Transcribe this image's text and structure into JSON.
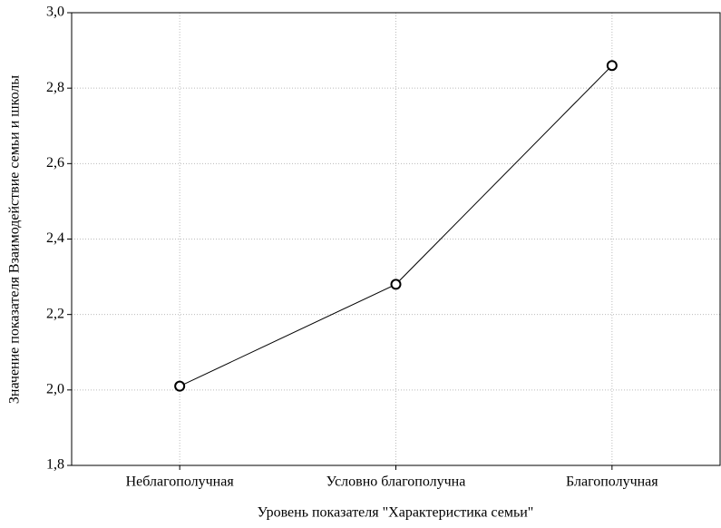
{
  "chart_data": {
    "type": "line",
    "xlabel": "Уровень показателя \"Характеристика семьи\"",
    "ylabel": "Значение показателя Взаимодействие семьи и школы",
    "categories": [
      "Неблагополучная",
      "Условно благополучна",
      "Благополучная"
    ],
    "series": [
      {
        "name": null,
        "color": "#000000",
        "values": [
          2.01,
          2.28,
          2.86
        ]
      }
    ],
    "ylim": [
      1.8,
      3.0
    ],
    "yticks": [
      {
        "value": 1.8,
        "label": "1,8"
      },
      {
        "value": 2.0,
        "label": "2,0"
      },
      {
        "value": 2.2,
        "label": "2,2"
      },
      {
        "value": 2.4,
        "label": "2,4"
      },
      {
        "value": 2.6,
        "label": "2,6"
      },
      {
        "value": 2.8,
        "label": "2,8"
      },
      {
        "value": 3.0,
        "label": "3,0"
      }
    ],
    "grid": true
  }
}
